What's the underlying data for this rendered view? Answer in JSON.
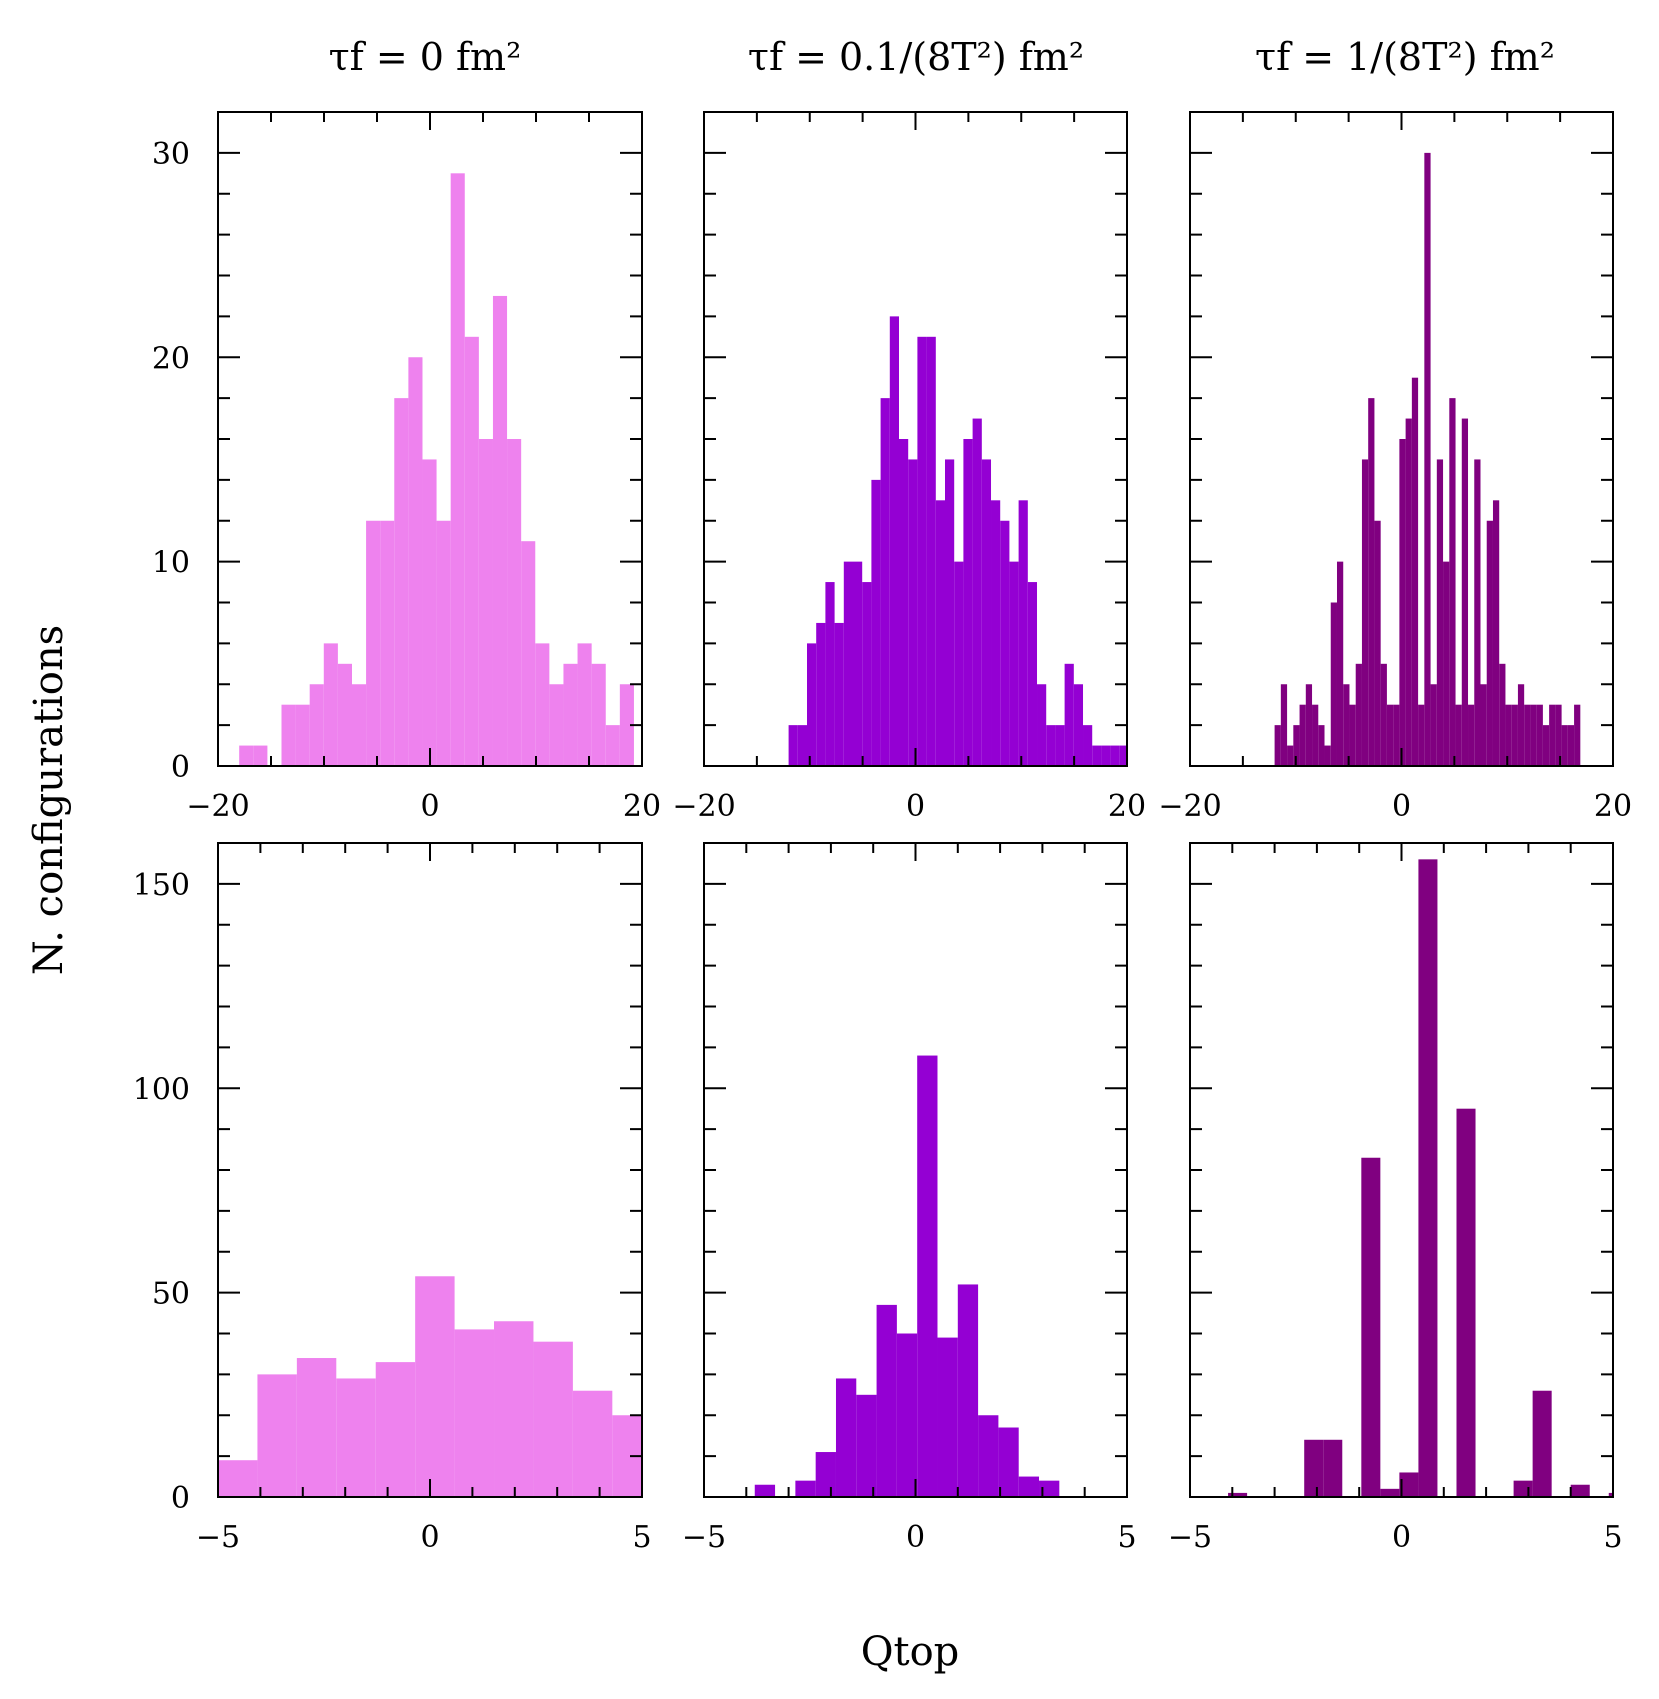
{
  "column_titles": [
    "τf = 0 fm²",
    "τf = 0.1/(8T²) fm²",
    "τf = 1/(8T²) fm²"
  ],
  "ylabel": "N. configurations",
  "xlabel": "Qtop",
  "colors": [
    "#ee82ee",
    "#9400d3",
    "#800080"
  ],
  "chart_data": [
    {
      "type": "bar",
      "panel": "top-left",
      "bin_start": -18,
      "bin_width": 1.33,
      "xlim": [
        -20,
        20
      ],
      "ylim": [
        0,
        32
      ],
      "xticks": [
        -20,
        0,
        20
      ],
      "xtick_labels": [
        "−20",
        "0",
        "20"
      ],
      "yticks": [
        0,
        10,
        20,
        30
      ],
      "ytick_labels": [
        "0",
        "10",
        "20",
        "30"
      ],
      "values": [
        1,
        1,
        0,
        3,
        3,
        4,
        6,
        5,
        4,
        12,
        12,
        18,
        20,
        15,
        12,
        29,
        21,
        16,
        23,
        16,
        11,
        6,
        4,
        5,
        6,
        5,
        2,
        4,
        0,
        1,
        1,
        2
      ]
    },
    {
      "type": "bar",
      "panel": "top-middle",
      "bin_start": -12,
      "bin_width": 0.87,
      "xlim": [
        -20,
        20
      ],
      "ylim": [
        0,
        32
      ],
      "xticks": [
        -20,
        0,
        20
      ],
      "xtick_labels": [
        "−20",
        "0",
        "20"
      ],
      "yticks": [
        0,
        10,
        20,
        30
      ],
      "ytick_labels": [
        "",
        "",
        "",
        ""
      ],
      "values": [
        2,
        2,
        6,
        7,
        9,
        7,
        10,
        10,
        9,
        14,
        18,
        22,
        16,
        15,
        21,
        21,
        13,
        15,
        10,
        16,
        17,
        15,
        13,
        12,
        10,
        13,
        9,
        4,
        2,
        2,
        5,
        4,
        2,
        1,
        1,
        1,
        1,
        1
      ]
    },
    {
      "type": "bar",
      "panel": "top-right",
      "bin_start": -12,
      "bin_width": 0.59,
      "xlim": [
        -20,
        20
      ],
      "ylim": [
        0,
        32
      ],
      "xticks": [
        -20,
        0,
        20
      ],
      "xtick_labels": [
        "−20",
        "0",
        "20"
      ],
      "yticks": [
        0,
        10,
        20,
        30
      ],
      "ytick_labels": [
        "",
        "",
        "",
        ""
      ],
      "values": [
        2,
        4,
        1,
        2,
        3,
        4,
        3,
        2,
        1,
        8,
        10,
        4,
        3,
        5,
        15,
        18,
        12,
        5,
        3,
        3,
        16,
        17,
        19,
        3,
        30,
        4,
        15,
        10,
        18,
        3,
        17,
        3,
        15,
        4,
        12,
        13,
        5,
        3,
        3,
        4,
        3,
        3,
        3,
        2,
        3,
        3,
        2,
        2,
        3
      ]
    },
    {
      "type": "bar",
      "panel": "bottom-left",
      "bin_start": -5,
      "bin_width": 0.93,
      "xlim": [
        -5,
        5
      ],
      "ylim": [
        0,
        160
      ],
      "xticks": [
        -5,
        0,
        5
      ],
      "xtick_labels": [
        "−5",
        "0",
        "5"
      ],
      "yticks": [
        0,
        50,
        100,
        150
      ],
      "ytick_labels": [
        "0",
        "50",
        "100",
        "150"
      ],
      "values": [
        9,
        30,
        34,
        29,
        33,
        54,
        41,
        43,
        38,
        26,
        20,
        11
      ]
    },
    {
      "type": "bar",
      "panel": "bottom-middle",
      "bin_start": -3.8,
      "bin_width": 0.48,
      "xlim": [
        -5,
        5
      ],
      "ylim": [
        0,
        160
      ],
      "xticks": [
        -5,
        0,
        5
      ],
      "xtick_labels": [
        "−5",
        "0",
        "5"
      ],
      "yticks": [
        0,
        50,
        100,
        150
      ],
      "ytick_labels": [
        "",
        "",
        "",
        ""
      ],
      "values": [
        3,
        0,
        4,
        11,
        29,
        25,
        47,
        40,
        108,
        39,
        52,
        20,
        17,
        5,
        4
      ]
    },
    {
      "type": "bar",
      "panel": "bottom-right",
      "bin_start": -4.1,
      "bin_width": 0.45,
      "xlim": [
        -5,
        5
      ],
      "ylim": [
        0,
        160
      ],
      "xticks": [
        -5,
        0,
        5
      ],
      "xtick_labels": [
        "−5",
        "0",
        "5"
      ],
      "yticks": [
        0,
        50,
        100,
        150
      ],
      "ytick_labels": [
        "",
        "",
        "",
        ""
      ],
      "values": [
        1,
        0,
        0,
        0,
        14,
        14,
        0,
        83,
        2,
        6,
        156,
        0,
        95,
        0,
        0,
        4,
        26,
        0,
        3,
        0,
        1,
        1
      ]
    }
  ]
}
